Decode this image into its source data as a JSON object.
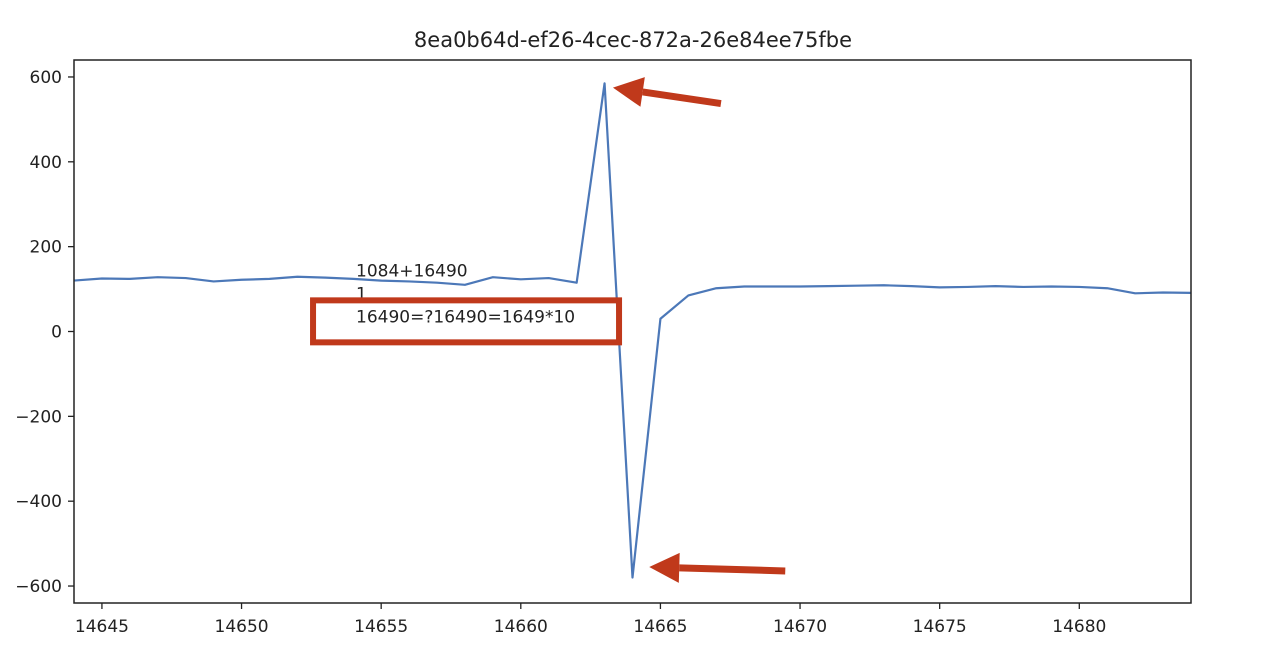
{
  "chart_data": {
    "type": "line",
    "title": "8ea0b64d-ef26-4cec-872a-26e84ee75fbe",
    "xlabel": "",
    "ylabel": "",
    "xlim": [
      14644,
      14684
    ],
    "ylim": [
      -640,
      640
    ],
    "xticks": [
      14645,
      14650,
      14655,
      14660,
      14665,
      14670,
      14675,
      14680
    ],
    "yticks": [
      600,
      400,
      200,
      0,
      -200,
      -400,
      -600
    ],
    "line_color": "#4c78b8",
    "series": [
      {
        "x": [
          14644,
          14645,
          14646,
          14647,
          14648,
          14649,
          14650,
          14651,
          14652,
          14653,
          14654,
          14655,
          14656,
          14657,
          14658,
          14659,
          14660,
          14661,
          14662,
          14663,
          14664,
          14665,
          14666,
          14667,
          14668,
          14669,
          14670,
          14671,
          14672,
          14673,
          14674,
          14675,
          14676,
          14677,
          14678,
          14679,
          14680,
          14681,
          14682,
          14683,
          14684
        ],
        "values": [
          120,
          125,
          124,
          128,
          126,
          118,
          122,
          124,
          129,
          127,
          124,
          120,
          118,
          115,
          110,
          128,
          123,
          126,
          115,
          585,
          -580,
          30,
          85,
          102,
          106,
          106,
          106,
          107,
          108,
          109,
          107,
          104,
          105,
          107,
          105,
          106,
          105,
          102,
          90,
          92,
          91
        ]
      }
    ],
    "annotations": [
      {
        "lines": [
          "1084+16490",
          "1",
          "16490=?16490=1649*10"
        ],
        "x": 14654.1,
        "y": 130,
        "boxed_line": 2
      }
    ],
    "highlight_color": "#c0391b",
    "arrows": [
      {
        "target": "max-peak",
        "x": 14663.3,
        "y": 575
      },
      {
        "target": "min-peak",
        "x": 14664.6,
        "y": -555
      }
    ],
    "grid": false
  }
}
